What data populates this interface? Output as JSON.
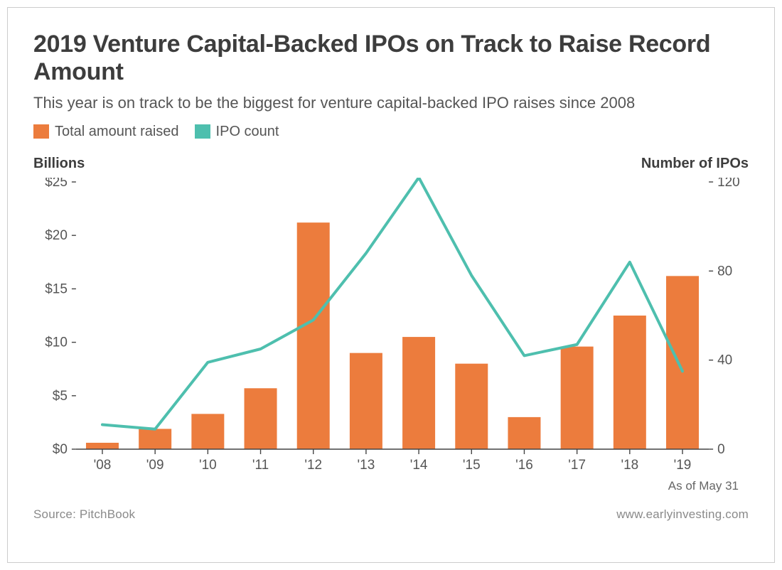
{
  "title": "2019 Venture Capital-Backed IPOs on Track to Raise Record Amount",
  "subtitle": "This year is on track to be the biggest for venture capital-backed IPO raises since 2008",
  "legend": {
    "series1_label": "Total amount raised",
    "series2_label": "IPO count"
  },
  "axis_left_title": "Billions",
  "axis_right_title": "Number of IPOs",
  "footnote": "As of May 31",
  "source_label": "Source: PitchBook",
  "website": "www.earlyinvesting.com",
  "chart": {
    "type": "bar+line",
    "categories": [
      "'08",
      "'09",
      "'10",
      "'11",
      "'12",
      "'13",
      "'14",
      "'15",
      "'16",
      "'17",
      "'18",
      "'19"
    ],
    "bars": {
      "values": [
        0.6,
        1.9,
        3.3,
        5.7,
        21.2,
        9.0,
        10.5,
        8.0,
        3.0,
        9.6,
        12.5,
        16.2
      ],
      "color": "#ec7c3d",
      "bar_width": 0.62
    },
    "line": {
      "values": [
        11,
        9,
        39,
        45,
        58,
        88,
        122,
        78,
        42,
        47,
        84,
        35
      ],
      "color": "#4ebfae",
      "line_width": 4
    },
    "y_left": {
      "min": 0,
      "max": 25,
      "ticks": [
        0,
        5,
        10,
        15,
        20,
        25
      ],
      "prefix": "$"
    },
    "y_right": {
      "min": 0,
      "max": 120,
      "ticks": [
        0,
        40,
        80,
        120
      ]
    },
    "grid_color": "#dddddd",
    "axis_color": "#444444",
    "tick_color": "#444444",
    "background": "#ffffff",
    "title_fontsize": 34,
    "subtitle_fontsize": 22,
    "axis_title_fontsize": 20,
    "tick_fontsize": 19
  }
}
